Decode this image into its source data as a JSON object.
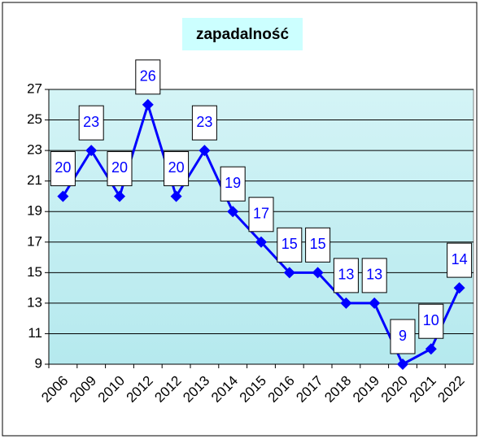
{
  "chart_data": {
    "type": "line",
    "title": "zapadalność",
    "categories": [
      "2006",
      "2009",
      "2010",
      "2012",
      "2012",
      "2013",
      "2014",
      "2015",
      "2016",
      "2017",
      "2018",
      "2019",
      "2020",
      "2021",
      "2022"
    ],
    "values": [
      20,
      23,
      20,
      26,
      20,
      23,
      19,
      17,
      15,
      15,
      13,
      13,
      9,
      10,
      14
    ],
    "color": "#0000ff",
    "ylim": [
      9,
      27
    ],
    "yticks": [
      9,
      11,
      13,
      15,
      17,
      19,
      21,
      23,
      25,
      27
    ],
    "grid": true
  }
}
